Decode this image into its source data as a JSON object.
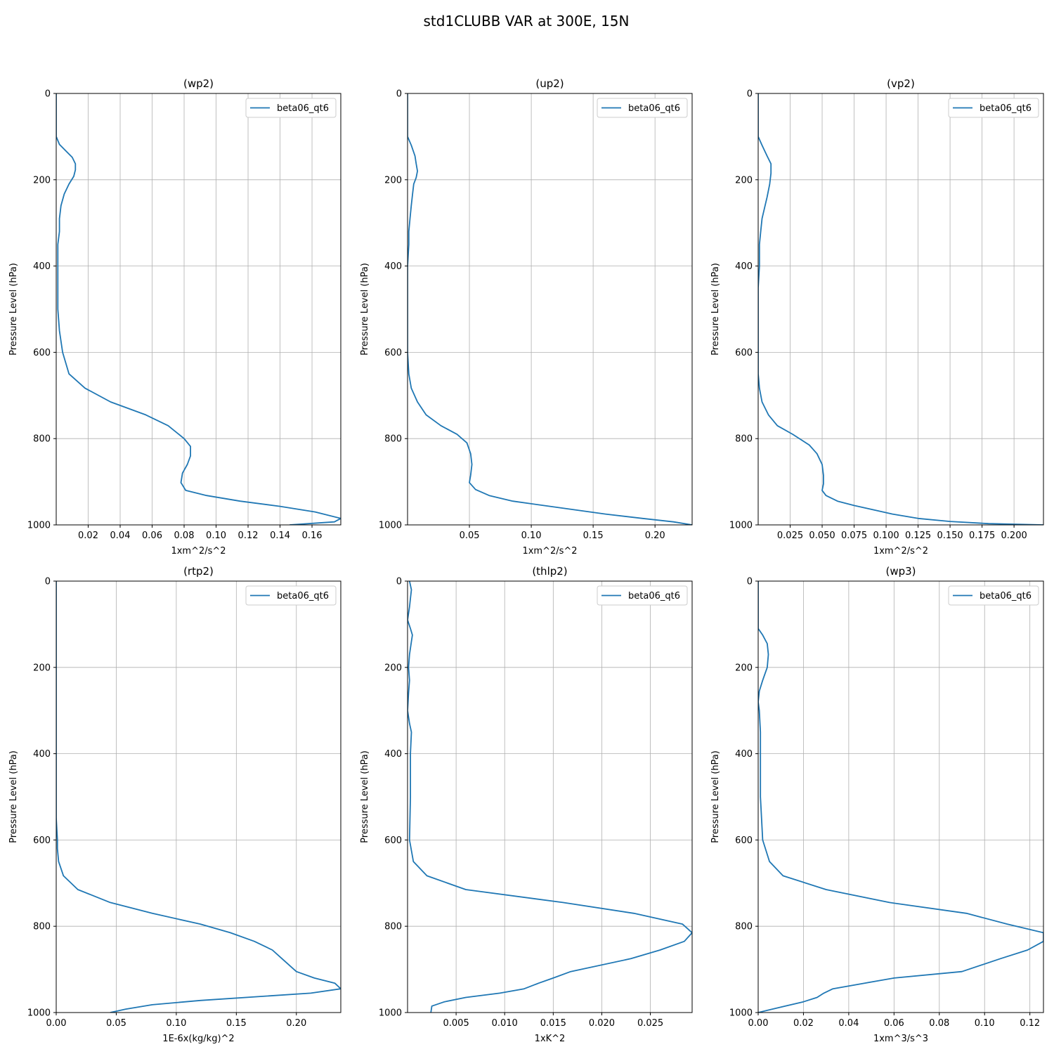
{
  "suptitle": "std1CLUBB VAR at 300E, 15N",
  "chart_data": [
    {
      "type": "line",
      "title": "(wp2)",
      "xlabel": "1xm^2/s^2",
      "ylabel": "Pressure Level (hPa)",
      "xlim": [
        0.0,
        0.178
      ],
      "ylim": [
        1000,
        0
      ],
      "xticks": [
        0.02,
        0.04,
        0.06,
        0.08,
        0.1,
        0.12,
        0.14,
        0.16
      ],
      "xtick_labels": [
        "0.02",
        "0.04",
        "0.06",
        "0.08",
        "0.10",
        "0.12",
        "0.14",
        "0.16"
      ],
      "yticks": [
        0,
        200,
        400,
        600,
        800,
        1000
      ],
      "ytick_labels": [
        "0",
        "200",
        "400",
        "600",
        "800",
        "1000"
      ],
      "grid": true,
      "legend": "upper right",
      "series": [
        {
          "name": "beta06_qt6",
          "x": [
            0.0,
            0.0,
            0.002,
            0.006,
            0.01,
            0.012,
            0.012,
            0.011,
            0.008,
            0.005,
            0.003,
            0.002,
            0.002,
            0.001,
            0.001,
            0.001,
            0.001,
            0.002,
            0.004,
            0.008,
            0.018,
            0.034,
            0.056,
            0.07,
            0.08,
            0.084,
            0.084,
            0.082,
            0.079,
            0.078,
            0.081,
            0.094,
            0.115,
            0.14,
            0.162,
            0.178,
            0.174,
            0.146
          ],
          "y": [
            0,
            100,
            118,
            133,
            148,
            163,
            177,
            192,
            210,
            233,
            260,
            290,
            320,
            350,
            400,
            450,
            500,
            550,
            600,
            650,
            683,
            715,
            745,
            770,
            800,
            818,
            840,
            860,
            880,
            902,
            920,
            932,
            945,
            957,
            970,
            985,
            993,
            1000
          ]
        }
      ]
    },
    {
      "type": "line",
      "title": "(up2)",
      "xlabel": "1xm^2/s^2",
      "ylabel": "Pressure Level (hPa)",
      "xlim": [
        0.0,
        0.23
      ],
      "ylim": [
        1000,
        0
      ],
      "xticks": [
        0.05,
        0.1,
        0.15,
        0.2
      ],
      "xtick_labels": [
        "0.05",
        "0.10",
        "0.15",
        "0.20"
      ],
      "yticks": [
        0,
        200,
        400,
        600,
        800,
        1000
      ],
      "ytick_labels": [
        "0",
        "200",
        "400",
        "600",
        "800",
        "1000"
      ],
      "grid": true,
      "legend": "upper right",
      "series": [
        {
          "name": "beta06_qt6",
          "x": [
            0.0,
            0.0,
            0.003,
            0.006,
            0.007,
            0.008,
            0.007,
            0.005,
            0.004,
            0.003,
            0.002,
            0.001,
            0.001,
            0.0,
            0.0,
            0.0,
            0.0,
            0.0,
            0.001,
            0.003,
            0.008,
            0.015,
            0.027,
            0.04,
            0.048,
            0.051,
            0.052,
            0.051,
            0.05,
            0.055,
            0.066,
            0.085,
            0.11,
            0.135,
            0.16,
            0.19,
            0.215,
            0.23
          ],
          "y": [
            0,
            100,
            120,
            145,
            163,
            180,
            195,
            210,
            235,
            260,
            290,
            320,
            350,
            400,
            450,
            500,
            550,
            600,
            650,
            683,
            715,
            745,
            770,
            790,
            810,
            835,
            860,
            885,
            902,
            918,
            932,
            945,
            955,
            965,
            975,
            985,
            993,
            1000
          ]
        }
      ]
    },
    {
      "type": "line",
      "title": "(vp2)",
      "xlabel": "1xm^2/s^2",
      "ylabel": "Pressure Level (hPa)",
      "xlim": [
        0.0,
        0.223
      ],
      "ylim": [
        1000,
        0
      ],
      "xticks": [
        0.025,
        0.05,
        0.075,
        0.1,
        0.125,
        0.15,
        0.175,
        0.2
      ],
      "xtick_labels": [
        "0.025",
        "0.050",
        "0.075",
        "0.100",
        "0.125",
        "0.150",
        "0.175",
        "0.200"
      ],
      "yticks": [
        0,
        200,
        400,
        600,
        800,
        1000
      ],
      "ytick_labels": [
        "0",
        "200",
        "400",
        "600",
        "800",
        "1000"
      ],
      "grid": true,
      "legend": "upper right",
      "series": [
        {
          "name": "beta06_qt6",
          "x": [
            0.0,
            0.0,
            0.003,
            0.007,
            0.01,
            0.01,
            0.009,
            0.007,
            0.005,
            0.003,
            0.002,
            0.001,
            0.001,
            0.0,
            0.0,
            0.0,
            0.0,
            0.0,
            0.001,
            0.003,
            0.008,
            0.015,
            0.027,
            0.04,
            0.046,
            0.05,
            0.051,
            0.051,
            0.05,
            0.053,
            0.062,
            0.075,
            0.09,
            0.105,
            0.125,
            0.15,
            0.18,
            0.223
          ],
          "y": [
            0,
            100,
            120,
            145,
            163,
            185,
            210,
            240,
            265,
            290,
            320,
            350,
            400,
            450,
            500,
            550,
            600,
            650,
            683,
            715,
            745,
            770,
            790,
            815,
            835,
            860,
            885,
            905,
            920,
            932,
            945,
            955,
            965,
            975,
            985,
            992,
            997,
            1000
          ]
        }
      ]
    },
    {
      "type": "line",
      "title": "(rtp2)",
      "xlabel": "1E-6x(kg/kg)^2",
      "ylabel": "Pressure Level (hPa)",
      "xlim": [
        0.0,
        0.237
      ],
      "ylim": [
        1000,
        0
      ],
      "xticks": [
        0.0,
        0.05,
        0.1,
        0.15,
        0.2
      ],
      "xtick_labels": [
        "0.00",
        "0.05",
        "0.10",
        "0.15",
        "0.20"
      ],
      "yticks": [
        0,
        200,
        400,
        600,
        800,
        1000
      ],
      "ytick_labels": [
        "0",
        "200",
        "400",
        "600",
        "800",
        "1000"
      ],
      "grid": true,
      "legend": "upper right",
      "series": [
        {
          "name": "beta06_qt6",
          "x": [
            0.0,
            0.0,
            0.0,
            0.0,
            0.0,
            0.0,
            0.0,
            0.001,
            0.001,
            0.002,
            0.006,
            0.018,
            0.045,
            0.08,
            0.12,
            0.145,
            0.165,
            0.18,
            0.188,
            0.2,
            0.215,
            0.232,
            0.237,
            0.212,
            0.12,
            0.08,
            0.058,
            0.045
          ],
          "y": [
            0,
            100,
            200,
            300,
            400,
            500,
            550,
            600,
            620,
            650,
            683,
            715,
            745,
            770,
            795,
            815,
            835,
            855,
            875,
            905,
            920,
            932,
            945,
            955,
            972,
            982,
            992,
            1000
          ]
        }
      ]
    },
    {
      "type": "line",
      "title": "(thlp2)",
      "xlabel": "1xK^2",
      "ylabel": "Pressure Level (hPa)",
      "xlim": [
        0.0,
        0.0293
      ],
      "ylim": [
        1000,
        0
      ],
      "xticks": [
        0.005,
        0.01,
        0.015,
        0.02,
        0.025
      ],
      "xtick_labels": [
        "0.005",
        "0.010",
        "0.015",
        "0.020",
        "0.025"
      ],
      "yticks": [
        0,
        200,
        400,
        600,
        800,
        1000
      ],
      "ytick_labels": [
        "0",
        "200",
        "400",
        "600",
        "800",
        "1000"
      ],
      "grid": true,
      "legend": "upper right",
      "series": [
        {
          "name": "beta06_qt6",
          "x": [
            0.0002,
            0.0004,
            0.0003,
            0.0002,
            0.0,
            0.0003,
            0.0005,
            0.0004,
            0.0002,
            0.0001,
            0.0002,
            0.0001,
            0.0,
            0.0002,
            0.0004,
            0.0003,
            0.0003,
            0.0003,
            0.0002,
            0.0006,
            0.002,
            0.006,
            0.016,
            0.0233,
            0.0283,
            0.0293,
            0.0285,
            0.026,
            0.023,
            0.0168,
            0.015,
            0.0135,
            0.012,
            0.0095,
            0.006,
            0.0038,
            0.0025,
            0.0024
          ],
          "y": [
            0,
            20,
            40,
            60,
            90,
            110,
            125,
            140,
            170,
            200,
            230,
            260,
            300,
            330,
            350,
            400,
            450,
            500,
            600,
            650,
            683,
            715,
            745,
            770,
            795,
            815,
            835,
            855,
            875,
            905,
            920,
            932,
            945,
            955,
            965,
            975,
            985,
            1000
          ]
        }
      ]
    },
    {
      "type": "line",
      "title": "(wp3)",
      "xlabel": "1xm^3/s^3",
      "ylabel": "Pressure Level (hPa)",
      "xlim": [
        0.0,
        0.126
      ],
      "ylim": [
        1000,
        0
      ],
      "xticks": [
        0.0,
        0.02,
        0.04,
        0.06,
        0.08,
        0.1,
        0.12
      ],
      "xtick_labels": [
        "0.00",
        "0.02",
        "0.04",
        "0.06",
        "0.08",
        "0.10",
        "0.12"
      ],
      "yticks": [
        0,
        200,
        400,
        600,
        800,
        1000
      ],
      "ytick_labels": [
        "0",
        "200",
        "400",
        "600",
        "800",
        "1000"
      ],
      "grid": true,
      "legend": "upper right",
      "series": [
        {
          "name": "beta06_qt6",
          "x": [
            0.0,
            0.0,
            0.0,
            0.002,
            0.004,
            0.0045,
            0.004,
            0.002,
            0.0005,
            0.0,
            0.0005,
            0.001,
            0.001,
            0.001,
            0.001,
            0.0015,
            0.002,
            0.005,
            0.011,
            0.03,
            0.058,
            0.092,
            0.11,
            0.126,
            0.126,
            0.119,
            0.107,
            0.09,
            0.06,
            0.047,
            0.033,
            0.029,
            0.026,
            0.02,
            0.012,
            0.004,
            0.0
          ],
          "y": [
            0,
            60,
            110,
            125,
            145,
            170,
            200,
            230,
            255,
            280,
            300,
            350,
            400,
            450,
            500,
            550,
            600,
            650,
            683,
            715,
            745,
            770,
            795,
            815,
            835,
            855,
            875,
            905,
            920,
            932,
            945,
            955,
            965,
            975,
            985,
            995,
            1000
          ]
        }
      ]
    }
  ]
}
